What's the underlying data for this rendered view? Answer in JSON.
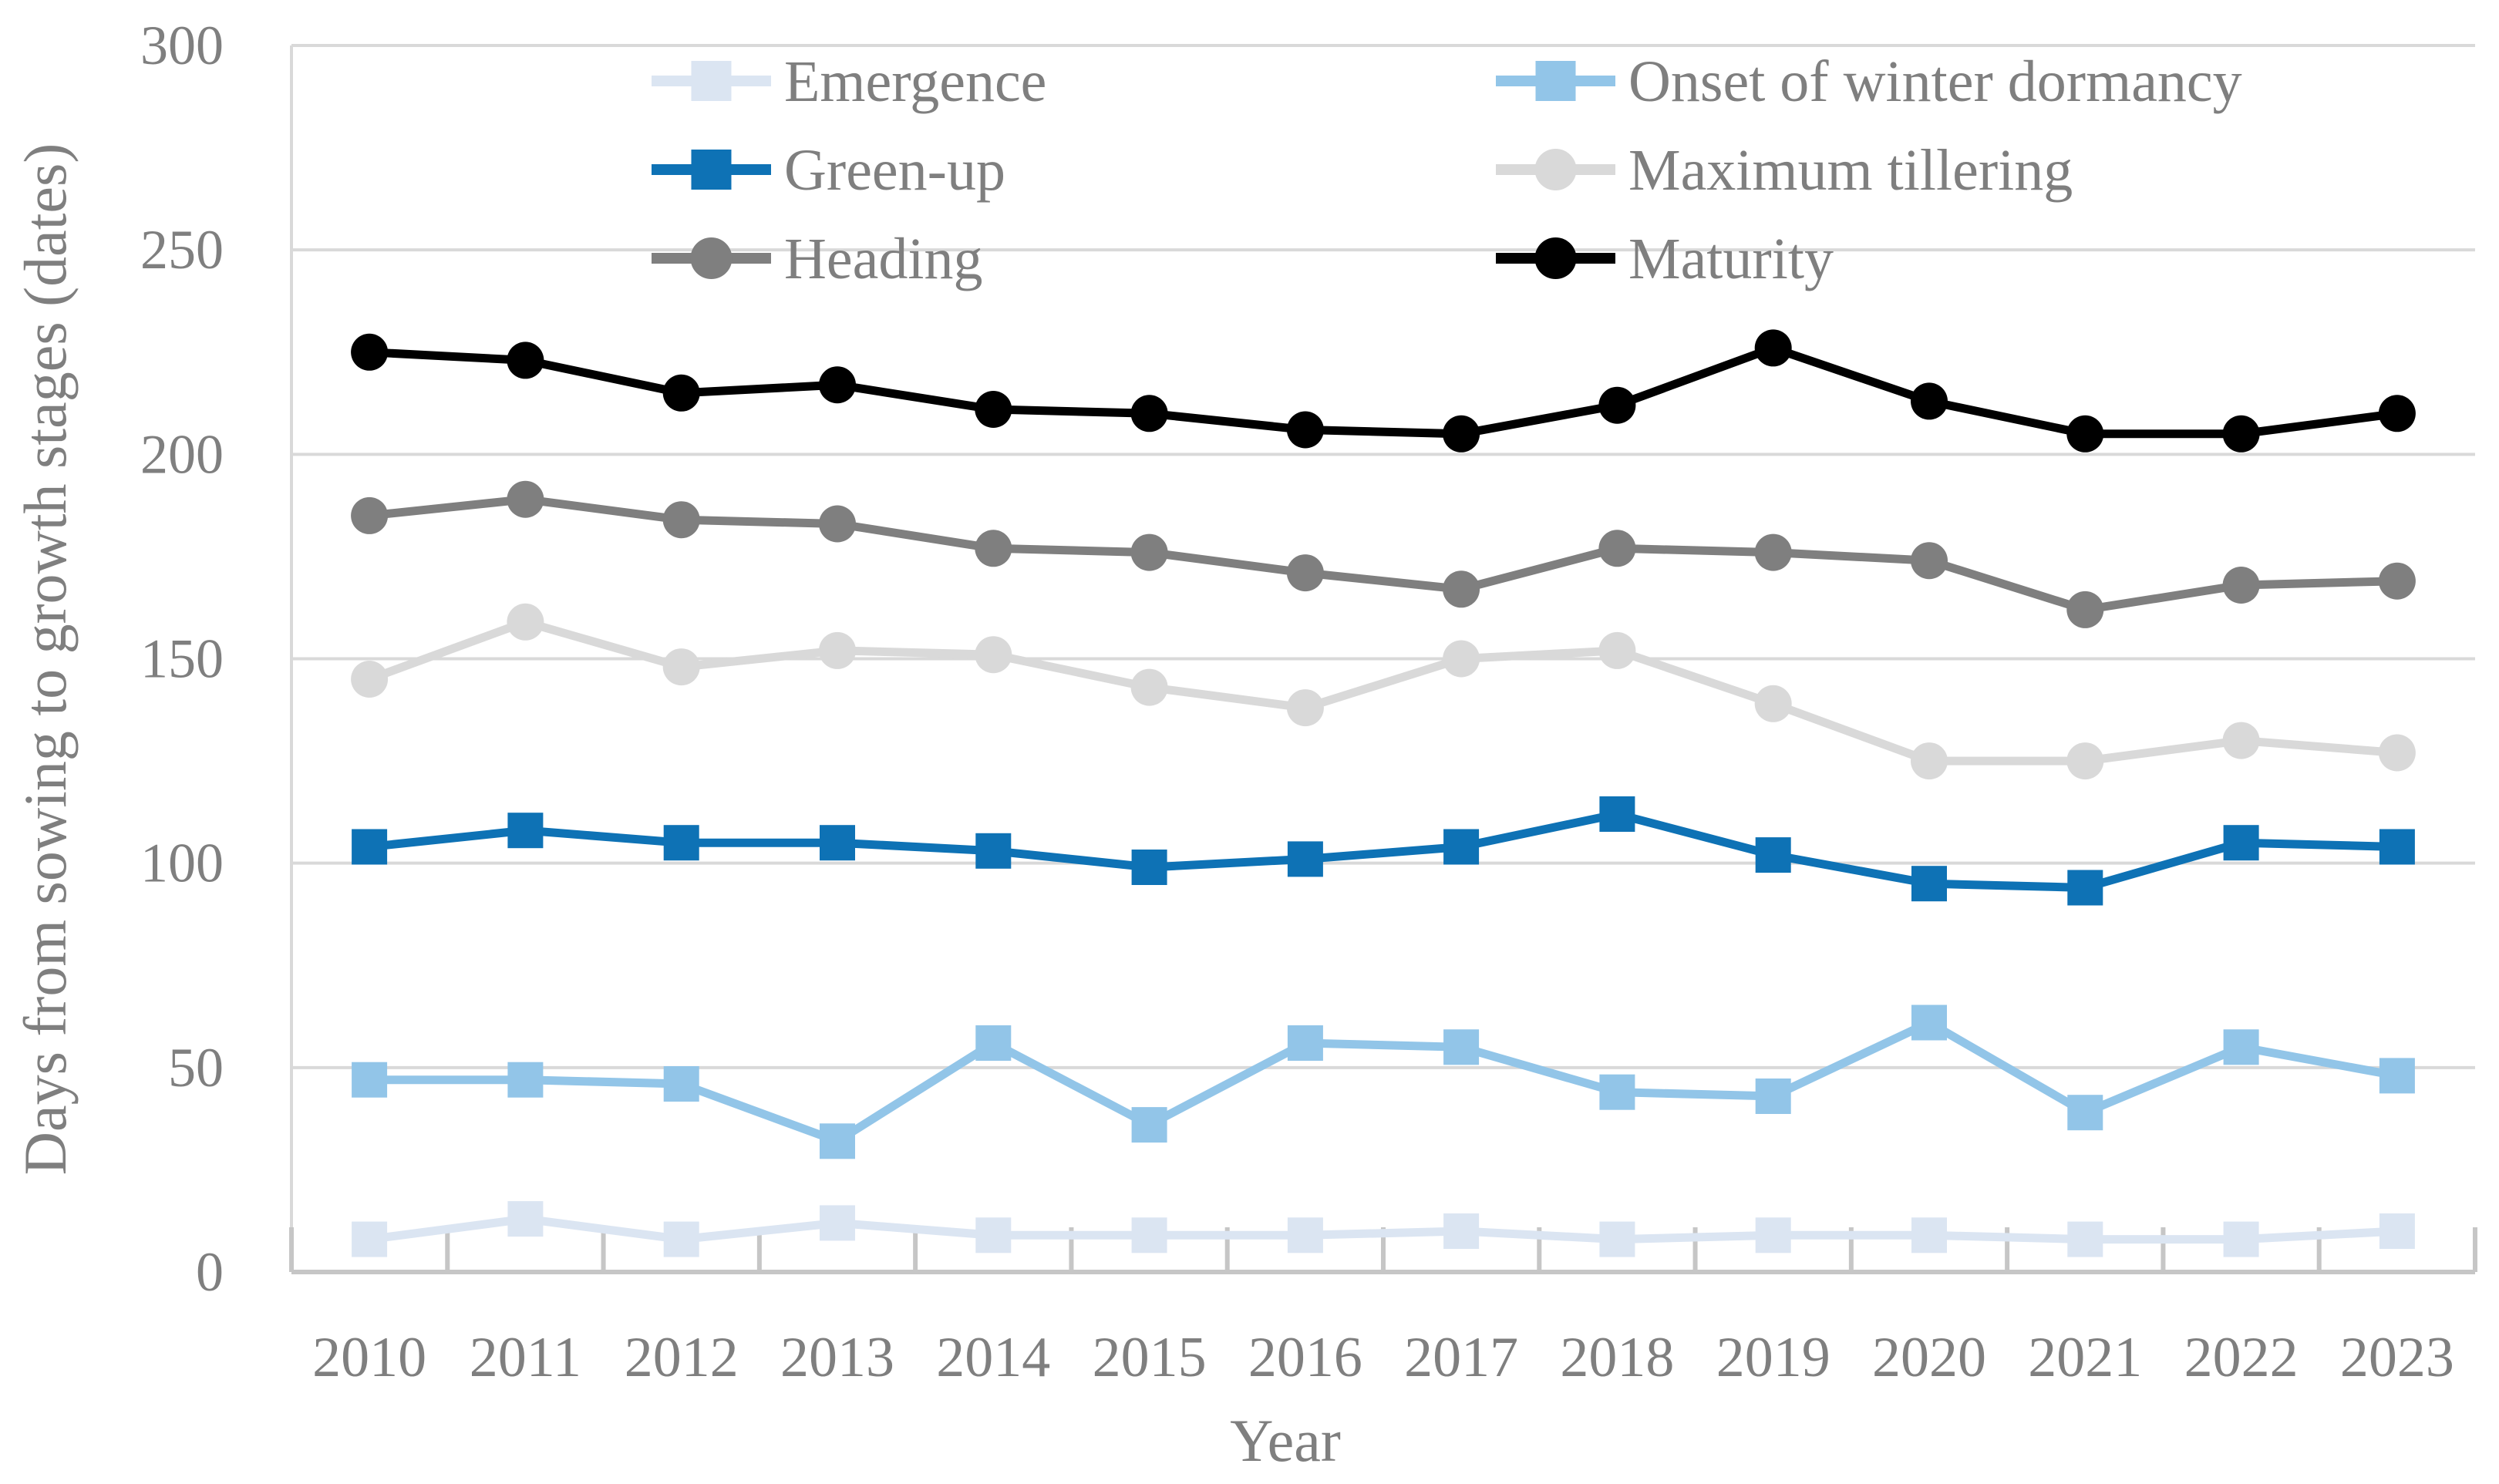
{
  "figure": {
    "background": "#ffffff",
    "text_color": "#7f7f7f",
    "gridline_color": "#d9d9d9",
    "axis_line_color": "#c6c6c6"
  },
  "chart_data": {
    "type": "line",
    "title": "",
    "xlabel": "Year",
    "ylabel": "Days from sowing to growth stages (dates)",
    "x": [
      2010,
      2011,
      2012,
      2013,
      2014,
      2015,
      2016,
      2017,
      2018,
      2019,
      2020,
      2021,
      2022,
      2023
    ],
    "ylim": [
      0,
      300
    ],
    "yticks": [
      0,
      50,
      100,
      150,
      200,
      250,
      300
    ],
    "grid": true,
    "legend_position": "top-center-two-columns",
    "legend_layout": [
      [
        "Emergence",
        "Onset of winter dormancy"
      ],
      [
        "Green-up",
        "Maximum tillering"
      ],
      [
        "Heading",
        "Maturity"
      ]
    ],
    "series": [
      {
        "name": "Emergence",
        "marker": "square",
        "color": "#dbe5f2",
        "values": [
          8,
          13,
          8,
          12,
          9,
          9,
          9,
          10,
          8,
          9,
          9,
          8,
          8,
          10
        ]
      },
      {
        "name": "Onset of winter dormancy",
        "marker": "square",
        "color": "#92c5e8",
        "values": [
          47,
          47,
          46,
          32,
          56,
          36,
          56,
          55,
          44,
          43,
          61,
          39,
          55,
          48
        ]
      },
      {
        "name": "Green-up",
        "marker": "square",
        "color": "#0e72b5",
        "values": [
          104,
          108,
          105,
          105,
          103,
          99,
          101,
          104,
          112,
          102,
          95,
          94,
          105,
          104
        ]
      },
      {
        "name": "Maximum tillering",
        "marker": "circle",
        "color": "#d9d9d9",
        "values": [
          145,
          159,
          148,
          152,
          151,
          143,
          138,
          150,
          152,
          139,
          125,
          125,
          130,
          127
        ]
      },
      {
        "name": "Heading",
        "marker": "circle",
        "color": "#7f7f7f",
        "values": [
          185,
          189,
          184,
          183,
          177,
          176,
          171,
          167,
          177,
          176,
          174,
          162,
          168,
          169
        ]
      },
      {
        "name": "Maturity",
        "marker": "circle",
        "color": "#000000",
        "values": [
          225,
          223,
          215,
          217,
          211,
          210,
          206,
          205,
          212,
          226,
          213,
          205,
          205,
          210
        ]
      }
    ]
  }
}
